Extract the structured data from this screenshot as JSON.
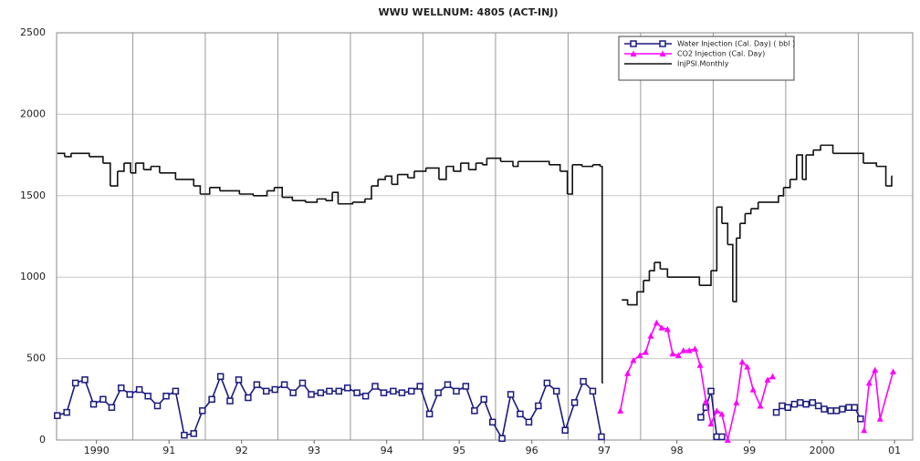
{
  "chart_data": {
    "type": "line",
    "title": "WWU  WELLNUM: 4805 (ACT-INJ)",
    "xlim": [
      1989.95,
      2001.75
    ],
    "ylim": [
      0,
      2500
    ],
    "yticks": [
      0,
      500,
      1000,
      1500,
      2000,
      2500
    ],
    "xticks": [
      {
        "value": 1990.5,
        "label": "1990"
      },
      {
        "value": 1991.5,
        "label": "91"
      },
      {
        "value": 1992.5,
        "label": "92"
      },
      {
        "value": 1993.5,
        "label": "93"
      },
      {
        "value": 1994.5,
        "label": "94"
      },
      {
        "value": 1995.5,
        "label": "95"
      },
      {
        "value": 1996.5,
        "label": "96"
      },
      {
        "value": 1997.5,
        "label": "97"
      },
      {
        "value": 1998.5,
        "label": "98"
      },
      {
        "value": 1999.5,
        "label": "99"
      },
      {
        "value": 2000.5,
        "label": "2000"
      },
      {
        "value": 2001.5,
        "label": "01"
      }
    ],
    "x_gridlines": [
      1991,
      1992,
      1993,
      1994,
      1995,
      1996,
      1997,
      1998,
      1999,
      2000,
      2001
    ],
    "grid": true,
    "legend": "upper right",
    "series": [
      {
        "name": "Water Injection (Cal. Day) ( bbl )",
        "color": "#1a1a80",
        "marker": "square",
        "step": false,
        "x": [
          1989.96,
          1990.09,
          1990.21,
          1990.34,
          1990.46,
          1990.59,
          1990.71,
          1990.84,
          1990.96,
          1991.09,
          1991.21,
          1991.34,
          1991.46,
          1991.59,
          1991.71,
          1991.84,
          1991.96,
          1992.09,
          1992.21,
          1992.34,
          1992.46,
          1992.59,
          1992.71,
          1992.84,
          1992.96,
          1993.09,
          1993.21,
          1993.34,
          1993.46,
          1993.59,
          1993.71,
          1993.84,
          1993.96,
          1994.09,
          1994.21,
          1994.34,
          1994.46,
          1994.59,
          1994.71,
          1994.84,
          1994.96,
          1995.09,
          1995.21,
          1995.34,
          1995.46,
          1995.59,
          1995.71,
          1995.84,
          1995.96,
          1996.09,
          1996.21,
          1996.34,
          1996.46,
          1996.59,
          1996.71,
          1996.84,
          1996.96,
          1997.09,
          1997.21,
          1997.34,
          1997.46,
          1997.6,
          1998.83,
          1998.9,
          1998.97,
          1999.05,
          1999.12,
          1999.5,
          1999.87,
          1999.95,
          2000.03,
          2000.12,
          2000.2,
          2000.28,
          2000.37,
          2000.45,
          2000.53,
          2000.62,
          2000.7,
          2000.78,
          2000.87,
          2000.95,
          2001.03
        ],
        "values": [
          150,
          170,
          350,
          370,
          220,
          250,
          200,
          320,
          280,
          310,
          270,
          210,
          270,
          300,
          30,
          40,
          180,
          250,
          390,
          240,
          370,
          260,
          340,
          300,
          310,
          340,
          290,
          350,
          280,
          290,
          300,
          300,
          320,
          290,
          270,
          330,
          290,
          300,
          290,
          300,
          330,
          160,
          290,
          340,
          300,
          330,
          180,
          250,
          110,
          10,
          280,
          160,
          110,
          210,
          350,
          300,
          60,
          230,
          360,
          300,
          20,
          null,
          140,
          200,
          300,
          20,
          20,
          null,
          170,
          210,
          200,
          220,
          230,
          220,
          230,
          210,
          190,
          180,
          180,
          190,
          200,
          200,
          130
        ]
      },
      {
        "name": "CO2 Injection (Cal. Day)",
        "color": "#ff00ff",
        "marker": "triangle",
        "step": false,
        "x": [
          1997.72,
          1997.82,
          1997.9,
          1997.99,
          1998.07,
          1998.14,
          1998.22,
          1998.29,
          1998.37,
          1998.44,
          1998.52,
          1998.59,
          1998.67,
          1998.75,
          1998.82,
          1998.9,
          1998.97,
          1999.05,
          1999.12,
          1999.2,
          1999.32,
          1999.4,
          1999.47,
          1999.55,
          1999.65,
          1999.75,
          1999.82,
          2000.5,
          2001.08,
          2001.15,
          2001.23,
          2001.3,
          2001.48
        ],
        "values": [
          180,
          410,
          490,
          520,
          540,
          640,
          720,
          690,
          680,
          530,
          520,
          550,
          550,
          560,
          460,
          240,
          100,
          180,
          160,
          0,
          230,
          480,
          450,
          310,
          210,
          370,
          390,
          null,
          60,
          350,
          430,
          130,
          420
        ]
      },
      {
        "name": "InjPSI.Monthly",
        "color": "#111111",
        "marker": "none",
        "step": true,
        "x": [
          1989.96,
          1990.06,
          1990.15,
          1990.4,
          1990.59,
          1990.69,
          1990.79,
          1990.88,
          1990.97,
          1991.04,
          1991.15,
          1991.25,
          1991.37,
          1991.59,
          1991.84,
          1991.93,
          1992.06,
          1992.2,
          1992.47,
          1992.66,
          1992.85,
          1992.95,
          1993.06,
          1993.2,
          1993.38,
          1993.54,
          1993.66,
          1993.75,
          1993.83,
          1994.03,
          1994.2,
          1994.29,
          1994.38,
          1994.48,
          1994.57,
          1994.65,
          1994.79,
          1994.88,
          1995.04,
          1995.22,
          1995.32,
          1995.42,
          1995.52,
          1995.63,
          1995.73,
          1995.82,
          1995.88,
          1996.07,
          1996.24,
          1996.31,
          1996.74,
          1996.89,
          1996.99,
          1997.06,
          1997.19,
          1997.34,
          1997.44,
          1997.47,
          1997.6,
          1997.74,
          1997.82,
          1997.95,
          1998.04,
          1998.12,
          1998.19,
          1998.27,
          1998.37,
          1998.81,
          1998.97,
          1999.05,
          1999.12,
          1999.2,
          1999.27,
          1999.32,
          1999.37,
          1999.44,
          1999.52,
          1999.62,
          1999.9,
          1999.97,
          2000.06,
          2000.15,
          2000.23,
          2000.28,
          2000.38,
          2000.48,
          2000.65,
          2001.07,
          2001.25,
          2001.38,
          2001.46
        ],
        "values": [
          1760,
          1740,
          1760,
          1740,
          1700,
          1560,
          1650,
          1700,
          1640,
          1700,
          1660,
          1680,
          1640,
          1600,
          1560,
          1510,
          1550,
          1530,
          1510,
          1500,
          1530,
          1550,
          1490,
          1470,
          1460,
          1480,
          1470,
          1520,
          1450,
          1460,
          1480,
          1560,
          1600,
          1620,
          1570,
          1630,
          1610,
          1650,
          1670,
          1600,
          1680,
          1650,
          1700,
          1660,
          1700,
          1690,
          1730,
          1710,
          1680,
          1710,
          1690,
          1650,
          1510,
          1690,
          1680,
          1690,
          1680,
          350,
          null,
          860,
          830,
          910,
          980,
          1040,
          1090,
          1050,
          1000,
          950,
          1040,
          1430,
          1330,
          1200,
          850,
          1240,
          1330,
          1390,
          1420,
          1460,
          1500,
          1550,
          1600,
          1750,
          1600,
          1750,
          1780,
          1810,
          1760,
          1700,
          1680,
          1560,
          1620
        ]
      }
    ]
  }
}
